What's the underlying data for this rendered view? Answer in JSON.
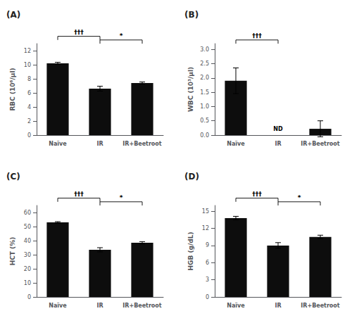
{
  "chart_data": [
    {
      "type": "bar",
      "title": "(A)",
      "categories": [
        "Naïve",
        "IR",
        "IR+Beetroot"
      ],
      "values": [
        10.2,
        6.6,
        7.4
      ],
      "errors": [
        0.15,
        0.35,
        0.15
      ],
      "color": "#0d0d0d",
      "ylabel": "RBC (10⁶/μl)",
      "ylim": [
        0,
        13
      ],
      "yticks": [
        0,
        2,
        4,
        6,
        8,
        10,
        12
      ],
      "grid": false,
      "annotations": [
        {
          "text": "†††",
          "from": "Naïve",
          "to": "IR"
        },
        {
          "text": "*",
          "from": "IR",
          "to": "IR+Beetroot"
        }
      ]
    },
    {
      "type": "bar",
      "title": "(B)",
      "categories": [
        "Naïve",
        "IR",
        "IR+Beetroot"
      ],
      "values": [
        1.9,
        null,
        0.22
      ],
      "errors": [
        0.45,
        null,
        0.28
      ],
      "color": "#0d0d0d",
      "ylabel": "WBC (10³/μl)",
      "ylim": [
        0,
        3.2
      ],
      "yticks": [
        {
          "value": 0,
          "label": "0.0"
        },
        0.5,
        {
          "value": 1,
          "label": "1.0"
        },
        1.5,
        {
          "value": 2,
          "label": "2.0"
        },
        2.5,
        {
          "value": 3,
          "label": "3.0"
        }
      ],
      "grid": false,
      "annotations": [
        {
          "text": "†††",
          "from": "Naïve",
          "to": "IR"
        },
        {
          "text": "ND",
          "at": "IR"
        }
      ]
    },
    {
      "type": "bar",
      "title": "(C)",
      "categories": [
        "Naïve",
        "IR",
        "IR+Beetroot"
      ],
      "values": [
        53.0,
        33.5,
        38.5
      ],
      "errors": [
        0.5,
        1.5,
        0.8
      ],
      "color": "#0d0d0d",
      "ylabel": "HCT (%)",
      "ylim": [
        0,
        65
      ],
      "yticks": [
        0,
        10,
        20,
        30,
        40,
        50,
        60
      ],
      "grid": false,
      "annotations": [
        {
          "text": "†††",
          "from": "Naïve",
          "to": "IR"
        },
        {
          "text": "*",
          "from": "IR",
          "to": "IR+Beetroot"
        }
      ]
    },
    {
      "type": "bar",
      "title": "(D)",
      "categories": [
        "Naïve",
        "IR",
        "IR+Beetroot"
      ],
      "values": [
        13.8,
        9.0,
        10.5
      ],
      "errors": [
        0.3,
        0.5,
        0.3
      ],
      "color": "#0d0d0d",
      "ylabel": "HGB (g/dL)",
      "ylim": [
        0,
        16
      ],
      "yticks": [
        0,
        3,
        6,
        9,
        12,
        15
      ],
      "grid": false,
      "annotations": [
        {
          "text": "†††",
          "from": "Naïve",
          "to": "IR"
        },
        {
          "text": "*",
          "from": "IR",
          "to": "IR+Beetroot"
        }
      ]
    }
  ]
}
